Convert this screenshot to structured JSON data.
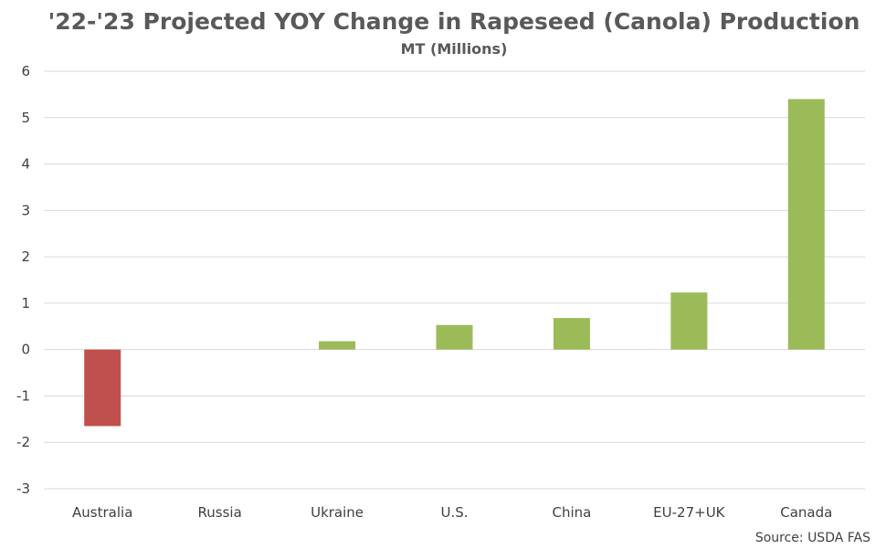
{
  "chart_data": {
    "type": "bar",
    "title": "'22-'23 Projected YOY Change in Rapeseed (Canola) Production",
    "subtitle": "MT (Millions)",
    "xlabel": "",
    "ylabel": "",
    "categories": [
      "Australia",
      "Russia",
      "Ukraine",
      "U.S.",
      "China",
      "EU-27+UK",
      "Canada"
    ],
    "values": [
      -1.65,
      0.0,
      0.18,
      0.53,
      0.68,
      1.23,
      5.4
    ],
    "ylim": [
      -3,
      6
    ],
    "yticks": [
      6,
      5,
      4,
      3,
      2,
      1,
      0,
      -1,
      -2,
      -3
    ],
    "grid": true,
    "legend": "none",
    "colors": {
      "positive": "#9bbb59",
      "negative": "#c0504d",
      "grid": "#d9d9d9",
      "text": "#404040",
      "title": "#595959"
    }
  },
  "source": "Source: USDA FAS"
}
